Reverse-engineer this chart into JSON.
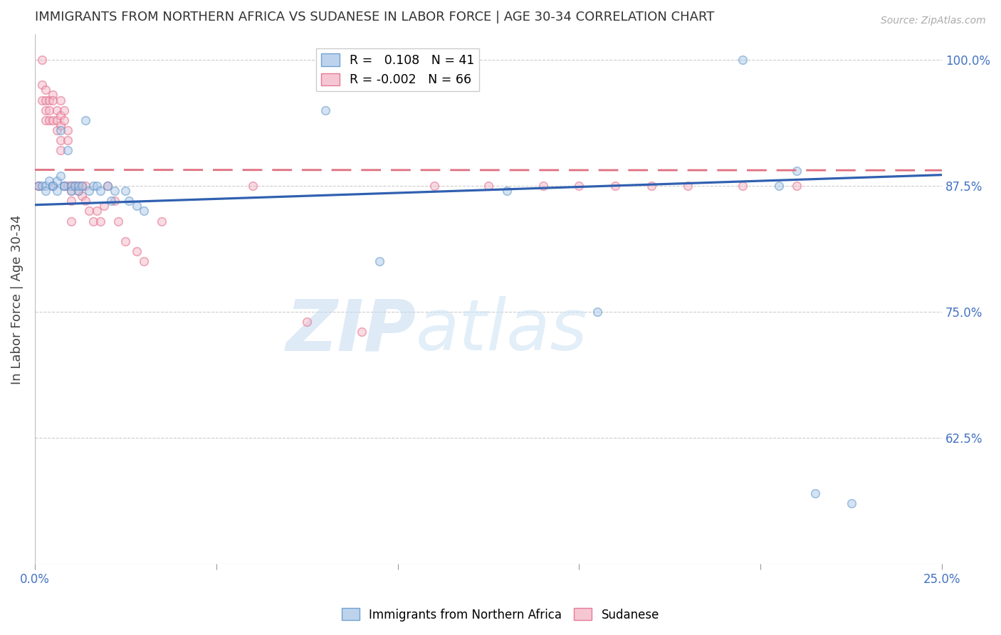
{
  "title": "IMMIGRANTS FROM NORTHERN AFRICA VS SUDANESE IN LABOR FORCE | AGE 30-34 CORRELATION CHART",
  "source": "Source: ZipAtlas.com",
  "ylabel": "In Labor Force | Age 30-34",
  "xlim": [
    0.0,
    0.25
  ],
  "ylim": [
    0.5,
    1.025
  ],
  "xticks": [
    0.0,
    0.05,
    0.1,
    0.15,
    0.2,
    0.25
  ],
  "xtick_labels": [
    "0.0%",
    "",
    "",
    "",
    "",
    "25.0%"
  ],
  "yticks": [
    0.625,
    0.75,
    0.875,
    1.0
  ],
  "ytick_labels": [
    "62.5%",
    "75.0%",
    "87.5%",
    "100.0%"
  ],
  "blue_R": 0.108,
  "blue_N": 41,
  "pink_R": -0.002,
  "pink_N": 66,
  "blue_scatter_x": [
    0.001,
    0.002,
    0.003,
    0.003,
    0.004,
    0.005,
    0.005,
    0.006,
    0.006,
    0.007,
    0.007,
    0.008,
    0.008,
    0.009,
    0.01,
    0.01,
    0.011,
    0.012,
    0.012,
    0.013,
    0.014,
    0.015,
    0.016,
    0.017,
    0.018,
    0.02,
    0.021,
    0.022,
    0.025,
    0.026,
    0.028,
    0.03,
    0.08,
    0.095,
    0.13,
    0.155,
    0.195,
    0.205,
    0.215,
    0.225,
    0.21
  ],
  "blue_scatter_y": [
    0.875,
    0.875,
    0.875,
    0.87,
    0.88,
    0.875,
    0.875,
    0.88,
    0.87,
    0.885,
    0.93,
    0.875,
    0.875,
    0.91,
    0.875,
    0.87,
    0.875,
    0.87,
    0.875,
    0.875,
    0.94,
    0.87,
    0.875,
    0.875,
    0.87,
    0.875,
    0.86,
    0.87,
    0.87,
    0.86,
    0.855,
    0.85,
    0.95,
    0.8,
    0.87,
    0.75,
    1.0,
    0.875,
    0.57,
    0.56,
    0.89
  ],
  "pink_scatter_x": [
    0.001,
    0.001,
    0.002,
    0.002,
    0.002,
    0.003,
    0.003,
    0.003,
    0.003,
    0.004,
    0.004,
    0.004,
    0.005,
    0.005,
    0.005,
    0.005,
    0.006,
    0.006,
    0.006,
    0.007,
    0.007,
    0.007,
    0.007,
    0.007,
    0.008,
    0.008,
    0.008,
    0.009,
    0.009,
    0.009,
    0.01,
    0.01,
    0.01,
    0.01,
    0.011,
    0.011,
    0.012,
    0.012,
    0.013,
    0.013,
    0.014,
    0.014,
    0.015,
    0.016,
    0.017,
    0.018,
    0.019,
    0.02,
    0.022,
    0.023,
    0.025,
    0.028,
    0.03,
    0.035,
    0.06,
    0.075,
    0.09,
    0.11,
    0.125,
    0.14,
    0.15,
    0.16,
    0.17,
    0.18,
    0.195,
    0.21
  ],
  "pink_scatter_y": [
    0.875,
    0.875,
    1.0,
    0.975,
    0.96,
    0.97,
    0.96,
    0.95,
    0.94,
    0.96,
    0.95,
    0.94,
    0.965,
    0.96,
    0.94,
    0.875,
    0.95,
    0.94,
    0.93,
    0.96,
    0.945,
    0.935,
    0.92,
    0.91,
    0.95,
    0.94,
    0.875,
    0.93,
    0.92,
    0.875,
    0.875,
    0.87,
    0.86,
    0.84,
    0.875,
    0.875,
    0.875,
    0.87,
    0.875,
    0.865,
    0.875,
    0.86,
    0.85,
    0.84,
    0.85,
    0.84,
    0.855,
    0.875,
    0.86,
    0.84,
    0.82,
    0.81,
    0.8,
    0.84,
    0.875,
    0.74,
    0.73,
    0.875,
    0.875,
    0.875,
    0.875,
    0.875,
    0.875,
    0.875,
    0.875,
    0.875
  ],
  "blue_color": "#adc8e8",
  "pink_color": "#f4b8c8",
  "blue_edge_color": "#5590c8",
  "pink_edge_color": "#e06080",
  "blue_line_color": "#3060b0",
  "pink_line_color": "#e07080",
  "background_color": "#ffffff",
  "grid_color": "#cccccc",
  "title_color": "#333333",
  "axis_label_color": "#4472c4",
  "watermark_color": "#c8dcf0",
  "dot_size": 70,
  "dot_alpha": 0.5,
  "dot_linewidth": 1.2
}
